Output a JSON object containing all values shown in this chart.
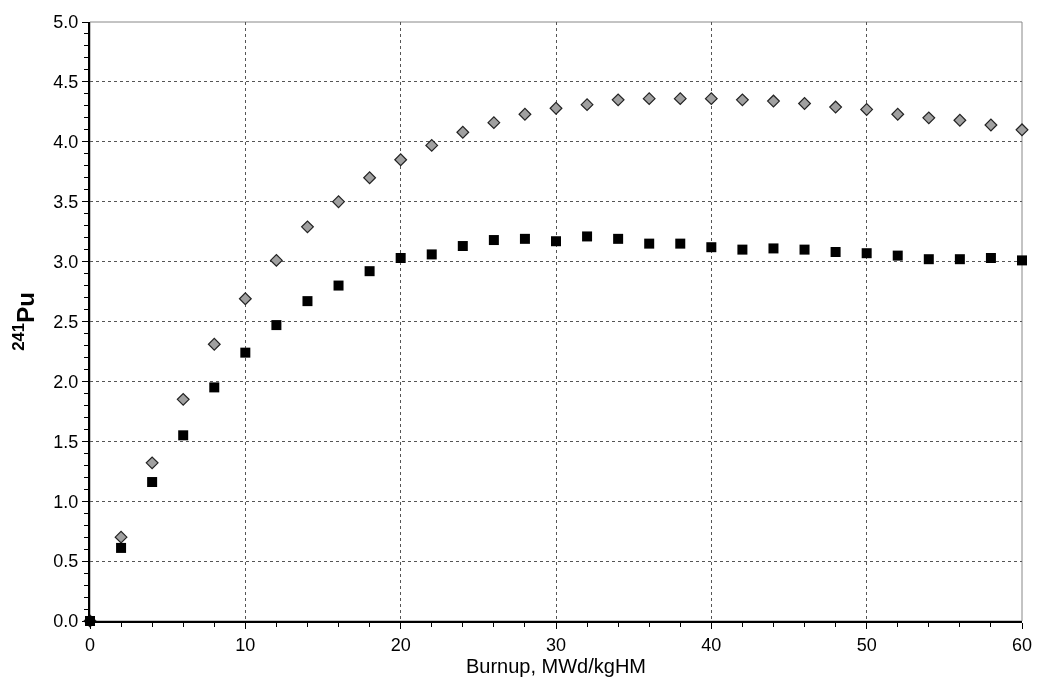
{
  "chart_data": {
    "type": "scatter",
    "xlabel": "Burnup, MWd/kgHM",
    "ylabel": "$^{241}$Pu",
    "x": [
      0,
      2,
      4,
      6,
      8,
      10,
      12,
      14,
      16,
      18,
      20,
      22,
      24,
      26,
      28,
      30,
      32,
      34,
      36,
      38,
      40,
      42,
      44,
      46,
      48,
      50,
      52,
      54,
      56,
      58,
      60
    ],
    "series": [
      {
        "color": "#a0a0a0",
        "marker": "diamond",
        "values": [
          0,
          0.7,
          1.32,
          1.85,
          2.31,
          2.69,
          3.01,
          3.29,
          3.5,
          3.7,
          3.85,
          3.97,
          4.08,
          4.16,
          4.23,
          4.28,
          4.31,
          4.35,
          4.36,
          4.36,
          4.36,
          4.35,
          4.34,
          4.32,
          4.29,
          4.27,
          4.23,
          4.2,
          4.18,
          4.14,
          4.1
        ]
      },
      {
        "color": "#000000",
        "marker": "square",
        "values": [
          0,
          0.61,
          1.16,
          1.55,
          1.95,
          2.24,
          2.47,
          2.67,
          2.8,
          2.92,
          3.03,
          3.06,
          3.13,
          3.18,
          3.19,
          3.17,
          3.21,
          3.19,
          3.15,
          3.15,
          3.12,
          3.1,
          3.11,
          3.1,
          3.08,
          3.07,
          3.05,
          3.02,
          3.02,
          3.03,
          3.01
        ]
      }
    ],
    "xlim": [
      0,
      60
    ],
    "xticks": [
      0,
      10,
      20,
      30,
      40,
      50,
      60
    ],
    "ylim": [
      0,
      5
    ],
    "yticks": [
      {
        "value": 0,
        "label": "0.0"
      },
      {
        "value": 0.5,
        "label": "0.5"
      },
      {
        "value": 1,
        "label": "1.0"
      },
      {
        "value": 1.5,
        "label": "1.5"
      },
      {
        "value": 2,
        "label": "2.0"
      },
      {
        "value": 2.5,
        "label": "2.5"
      },
      {
        "value": 3,
        "label": "3.0"
      },
      {
        "value": 3.5,
        "label": "3.5"
      },
      {
        "value": 4,
        "label": "4.0"
      },
      {
        "value": 4.5,
        "label": "4.5"
      },
      {
        "value": 5,
        "label": "5.0"
      }
    ],
    "grid": true,
    "line_style": "dotted"
  }
}
